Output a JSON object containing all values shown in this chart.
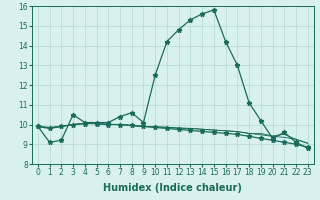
{
  "xlabel": "Humidex (Indice chaleur)",
  "x": [
    0,
    1,
    2,
    3,
    4,
    5,
    6,
    7,
    8,
    9,
    10,
    11,
    12,
    13,
    14,
    15,
    16,
    17,
    18,
    19,
    20,
    21,
    22,
    23
  ],
  "series1": [
    9.9,
    9.1,
    9.2,
    10.5,
    10.1,
    10.1,
    10.1,
    10.4,
    10.6,
    10.1,
    12.5,
    14.2,
    14.8,
    15.3,
    15.6,
    15.8,
    14.2,
    13.0,
    11.1,
    10.2,
    9.3,
    9.6,
    9.1,
    8.8
  ],
  "series2": [
    9.9,
    9.8,
    9.9,
    10.0,
    10.05,
    10.05,
    10.0,
    10.0,
    9.95,
    9.9,
    9.85,
    9.8,
    9.75,
    9.7,
    9.65,
    9.6,
    9.55,
    9.5,
    9.4,
    9.3,
    9.2,
    9.1,
    9.0,
    8.85
  ],
  "series3": [
    9.9,
    9.85,
    9.9,
    10.0,
    10.05,
    10.05,
    10.0,
    10.0,
    9.95,
    9.9,
    9.88,
    9.86,
    9.82,
    9.8,
    9.76,
    9.72,
    9.68,
    9.64,
    9.55,
    9.48,
    9.4,
    9.35,
    9.25,
    9.05
  ],
  "series4": [
    9.9,
    9.85,
    9.9,
    10.0,
    10.05,
    10.05,
    10.0,
    10.0,
    9.95,
    9.9,
    9.88,
    9.86,
    9.82,
    9.8,
    9.76,
    9.72,
    9.68,
    9.64,
    9.55,
    9.55,
    9.42,
    9.5,
    9.25,
    9.05
  ],
  "line_color": "#1a6b5a",
  "bg_color": "#d8f0ee",
  "grid_color": "#b0d8d4",
  "ylim": [
    8,
    16
  ],
  "xlim": [
    -0.5,
    23.5
  ],
  "yticks": [
    8,
    9,
    10,
    11,
    12,
    13,
    14,
    15,
    16
  ],
  "xticks": [
    0,
    1,
    2,
    3,
    4,
    5,
    6,
    7,
    8,
    9,
    10,
    11,
    12,
    13,
    14,
    15,
    16,
    17,
    18,
    19,
    20,
    21,
    22,
    23
  ],
  "marker": "*",
  "markersize": 3.5,
  "linewidth": 0.9,
  "tick_fontsize": 5.5,
  "label_fontsize": 7.0
}
